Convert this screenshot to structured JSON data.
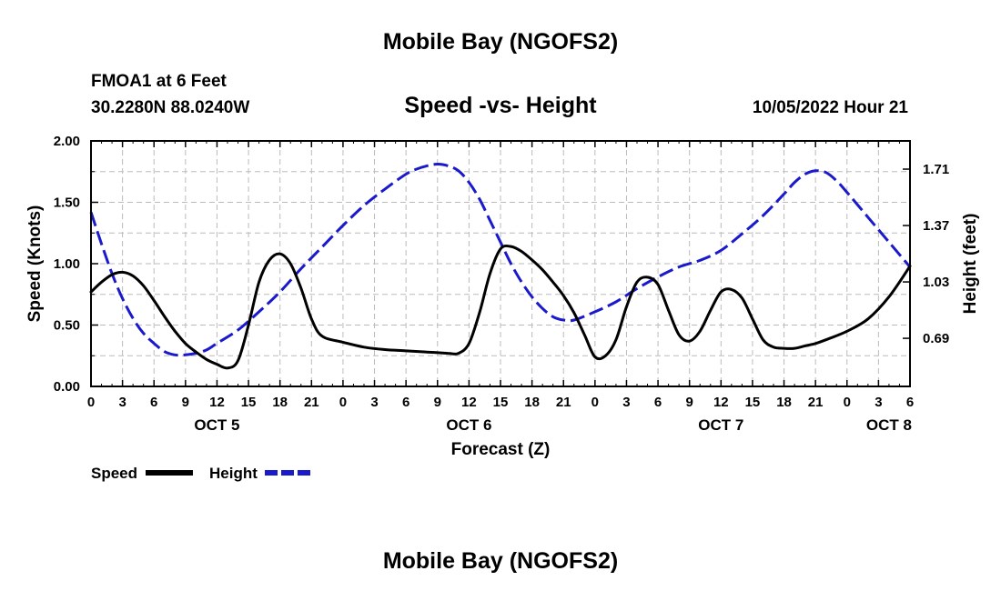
{
  "header": {
    "title": "Mobile Bay (NGOFS2)",
    "station": "FMOA1 at 6 Feet",
    "coords": "30.2280N  88.0240W",
    "subtitle": "Speed -vs- Height",
    "timestamp": "10/05/2022 Hour 21"
  },
  "footer": {
    "title": "Mobile Bay (NGOFS2)"
  },
  "chart_data": {
    "type": "line",
    "title": "Speed -vs- Height",
    "xlabel": "Forecast (Z)",
    "ylabel": "Speed (Knots)",
    "ylabel_right": "Height (feet)",
    "x_unit": "hours since OCT 5 00Z",
    "xlim": [
      0,
      78
    ],
    "ylim": [
      0,
      2.0
    ],
    "ylim_right": [
      0.4,
      1.88
    ],
    "grid": true,
    "x_ticks": [
      {
        "x": 0,
        "label": "0"
      },
      {
        "x": 3,
        "label": "3"
      },
      {
        "x": 6,
        "label": "6"
      },
      {
        "x": 9,
        "label": "9"
      },
      {
        "x": 12,
        "label": "12"
      },
      {
        "x": 15,
        "label": "15"
      },
      {
        "x": 18,
        "label": "18"
      },
      {
        "x": 21,
        "label": "21"
      },
      {
        "x": 24,
        "label": "0"
      },
      {
        "x": 27,
        "label": "3"
      },
      {
        "x": 30,
        "label": "6"
      },
      {
        "x": 33,
        "label": "9"
      },
      {
        "x": 36,
        "label": "12"
      },
      {
        "x": 39,
        "label": "15"
      },
      {
        "x": 42,
        "label": "18"
      },
      {
        "x": 45,
        "label": "21"
      },
      {
        "x": 48,
        "label": "0"
      },
      {
        "x": 51,
        "label": "3"
      },
      {
        "x": 54,
        "label": "6"
      },
      {
        "x": 57,
        "label": "9"
      },
      {
        "x": 60,
        "label": "12"
      },
      {
        "x": 63,
        "label": "15"
      },
      {
        "x": 66,
        "label": "18"
      },
      {
        "x": 69,
        "label": "21"
      },
      {
        "x": 72,
        "label": "0"
      },
      {
        "x": 75,
        "label": "3"
      },
      {
        "x": 78,
        "label": "6"
      }
    ],
    "day_labels": [
      {
        "x": 12,
        "label": "OCT 5"
      },
      {
        "x": 36,
        "label": "OCT 6"
      },
      {
        "x": 60,
        "label": "OCT 7"
      },
      {
        "x": 76,
        "label": "OCT 8"
      }
    ],
    "y_ticks": [
      {
        "v": 0.0,
        "label": "0.00"
      },
      {
        "v": 0.5,
        "label": "0.50"
      },
      {
        "v": 1.0,
        "label": "1.00"
      },
      {
        "v": 1.5,
        "label": "1.50"
      },
      {
        "v": 2.0,
        "label": "2.00"
      }
    ],
    "y_ticks_right": [
      {
        "v": 0.69,
        "label": "0.69"
      },
      {
        "v": 1.03,
        "label": "1.03"
      },
      {
        "v": 1.37,
        "label": "1.37"
      },
      {
        "v": 1.71,
        "label": "1.71"
      }
    ],
    "legend": {
      "placement": "bottom-left"
    },
    "series": [
      {
        "name": "Speed",
        "axis": "left",
        "color": "#000000",
        "style": "solid",
        "x": [
          0,
          1,
          2,
          3,
          4,
          5,
          6,
          7,
          8,
          9,
          10,
          11,
          12,
          13,
          14,
          15,
          16,
          17,
          18,
          19,
          20,
          21,
          22,
          24,
          26,
          28,
          30,
          32,
          34,
          35,
          36,
          37,
          38,
          39,
          40,
          41,
          42,
          43,
          44,
          45,
          46,
          47,
          48,
          49,
          50,
          51,
          52,
          53,
          54,
          55,
          56,
          57,
          58,
          59,
          60,
          61,
          62,
          63,
          64,
          65,
          66,
          67,
          68,
          69,
          70,
          72,
          74,
          76,
          78
        ],
        "values": [
          0.77,
          0.85,
          0.91,
          0.93,
          0.9,
          0.82,
          0.7,
          0.57,
          0.45,
          0.35,
          0.28,
          0.22,
          0.18,
          0.15,
          0.21,
          0.5,
          0.85,
          1.03,
          1.08,
          1.0,
          0.8,
          0.55,
          0.41,
          0.36,
          0.32,
          0.3,
          0.29,
          0.28,
          0.27,
          0.27,
          0.35,
          0.6,
          0.92,
          1.12,
          1.14,
          1.1,
          1.03,
          0.95,
          0.85,
          0.74,
          0.6,
          0.42,
          0.24,
          0.25,
          0.38,
          0.65,
          0.85,
          0.89,
          0.83,
          0.62,
          0.42,
          0.37,
          0.45,
          0.62,
          0.77,
          0.79,
          0.72,
          0.55,
          0.38,
          0.32,
          0.31,
          0.31,
          0.33,
          0.35,
          0.38,
          0.45,
          0.55,
          0.73,
          0.98
        ]
      },
      {
        "name": "Height",
        "axis": "right",
        "color": "#1a1acc",
        "style": "dashed",
        "x": [
          0,
          1,
          2,
          3,
          4,
          5,
          6,
          7,
          8,
          9,
          10,
          11,
          12,
          14,
          16,
          18,
          20,
          22,
          24,
          26,
          28,
          30,
          31,
          32,
          33,
          34,
          35,
          36,
          37,
          38,
          39,
          40,
          41,
          42,
          43,
          44,
          45,
          46,
          48,
          50,
          52,
          54,
          56,
          58,
          60,
          62,
          64,
          66,
          67,
          68,
          69,
          70,
          71,
          72,
          74,
          76,
          78
        ],
        "values": [
          1.45,
          1.26,
          1.08,
          0.93,
          0.81,
          0.72,
          0.66,
          0.61,
          0.59,
          0.59,
          0.6,
          0.62,
          0.66,
          0.74,
          0.85,
          0.97,
          1.11,
          1.24,
          1.37,
          1.49,
          1.59,
          1.68,
          1.71,
          1.73,
          1.74,
          1.73,
          1.7,
          1.63,
          1.53,
          1.4,
          1.27,
          1.14,
          1.03,
          0.94,
          0.87,
          0.82,
          0.8,
          0.8,
          0.85,
          0.91,
          0.99,
          1.06,
          1.12,
          1.16,
          1.22,
          1.32,
          1.43,
          1.56,
          1.63,
          1.68,
          1.7,
          1.69,
          1.64,
          1.57,
          1.42,
          1.27,
          1.12
        ]
      }
    ]
  }
}
